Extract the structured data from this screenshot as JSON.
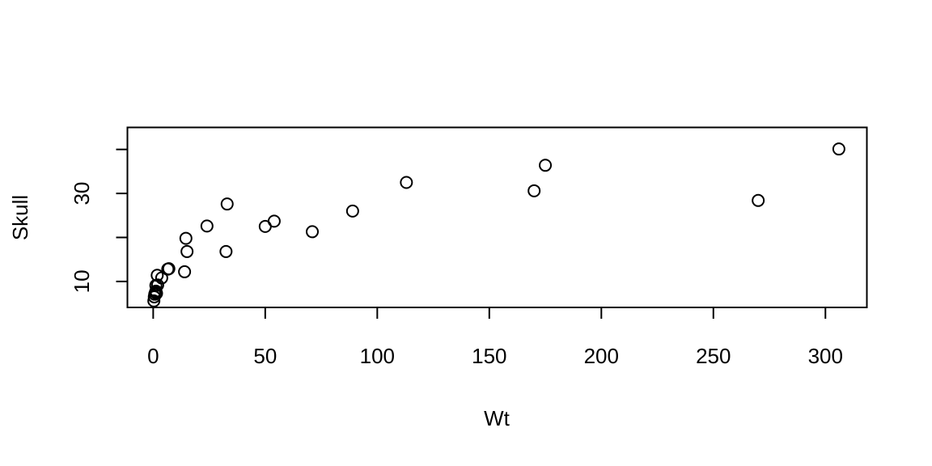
{
  "chart_data": {
    "type": "scatter",
    "title": "",
    "xlabel": "Wt",
    "ylabel": "Skull",
    "xlim": [
      -11.5,
      318.5
    ],
    "ylim": [
      4.1,
      45.0
    ],
    "x_ticks": [
      0,
      50,
      100,
      150,
      200,
      250,
      300
    ],
    "y_ticks": [
      10,
      20,
      30,
      40
    ],
    "y_tick_labels_shown": [
      "10",
      "30"
    ],
    "grid": false,
    "legend": "none",
    "points": [
      {
        "x": 0.3,
        "y": 5.6
      },
      {
        "x": 0.5,
        "y": 6.5
      },
      {
        "x": 0.7,
        "y": 7.1
      },
      {
        "x": 1.0,
        "y": 7.5
      },
      {
        "x": 1.2,
        "y": 7.8
      },
      {
        "x": 1.5,
        "y": 7.3
      },
      {
        "x": 1.2,
        "y": 9.1
      },
      {
        "x": 2.0,
        "y": 9.2
      },
      {
        "x": 1.8,
        "y": 11.4
      },
      {
        "x": 3.8,
        "y": 10.8
      },
      {
        "x": 6.5,
        "y": 12.8
      },
      {
        "x": 7.0,
        "y": 12.9
      },
      {
        "x": 14.0,
        "y": 12.2
      },
      {
        "x": 14.6,
        "y": 19.8
      },
      {
        "x": 15.1,
        "y": 16.8
      },
      {
        "x": 24.0,
        "y": 22.6
      },
      {
        "x": 32.5,
        "y": 16.8
      },
      {
        "x": 33.0,
        "y": 27.6
      },
      {
        "x": 50.0,
        "y": 22.5
      },
      {
        "x": 54.0,
        "y": 23.7
      },
      {
        "x": 71.0,
        "y": 21.3
      },
      {
        "x": 89.0,
        "y": 26.0
      },
      {
        "x": 113.0,
        "y": 32.5
      },
      {
        "x": 170.0,
        "y": 30.6
      },
      {
        "x": 175.0,
        "y": 36.4
      },
      {
        "x": 270.0,
        "y": 28.4
      },
      {
        "x": 306.0,
        "y": 40.1
      }
    ]
  }
}
